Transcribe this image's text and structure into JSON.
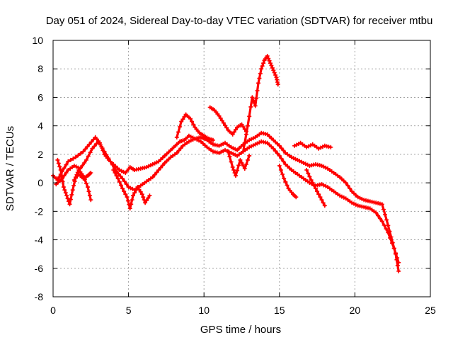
{
  "chart_data": {
    "type": "scatter",
    "title": "Day 051 of 2024, Sidereal Day-to-day VTEC variation (SDTVAR) for receiver mtbu",
    "xlabel": "GPS time / hours",
    "ylabel": "SDTVAR / TECUs",
    "xlim": [
      0,
      25
    ],
    "ylim": [
      -8,
      10
    ],
    "xticks": [
      "0",
      "5",
      "10",
      "15",
      "20",
      "25"
    ],
    "yticks": [
      "-8",
      "-6",
      "-4",
      "-2",
      "0",
      "2",
      "4",
      "6",
      "8",
      "10"
    ],
    "grid": true,
    "legend": "none",
    "series": [
      {
        "name": "track-main",
        "color": "#ff0000",
        "x": [
          0.0,
          0.3,
          0.6,
          1.0,
          1.5,
          2.0,
          2.4,
          2.8,
          3.1,
          3.4,
          3.7,
          4.0,
          4.4,
          4.8,
          5.1,
          5.4,
          5.8,
          6.2,
          6.6,
          7.0,
          7.4,
          7.8,
          8.1,
          8.4,
          8.7,
          9.0,
          9.4,
          9.8,
          10.2,
          10.6,
          11.0,
          11.4,
          11.8,
          12.2,
          12.6,
          13.0,
          13.4,
          13.8,
          14.2,
          14.6,
          15.0,
          15.4,
          15.8,
          16.2,
          16.6,
          17.0,
          17.4,
          17.8,
          18.2,
          18.6,
          19.0,
          19.4,
          19.8,
          20.2,
          20.6,
          21.0,
          21.4,
          21.8,
          22.1,
          22.4,
          22.7,
          22.9
        ],
        "y": [
          0.5,
          0.2,
          0.8,
          1.5,
          1.8,
          2.2,
          2.7,
          3.2,
          2.8,
          2.0,
          1.6,
          1.3,
          0.9,
          0.7,
          1.1,
          0.9,
          1.0,
          1.1,
          1.3,
          1.5,
          1.9,
          2.3,
          2.6,
          2.9,
          3.0,
          3.3,
          3.1,
          3.2,
          3.0,
          2.7,
          2.6,
          2.8,
          2.5,
          2.3,
          2.7,
          3.0,
          3.2,
          3.5,
          3.4,
          3.0,
          2.6,
          2.1,
          1.8,
          1.6,
          1.4,
          1.2,
          1.3,
          1.2,
          1.0,
          0.7,
          0.4,
          0.0,
          -0.6,
          -1.0,
          -1.2,
          -1.3,
          -1.4,
          -1.5,
          -2.6,
          -3.8,
          -5.0,
          -6.2
        ]
      },
      {
        "name": "track-low",
        "color": "#ff0000",
        "x": [
          0.2,
          0.6,
          1.0,
          1.4,
          1.8,
          2.2,
          2.6,
          3.0,
          3.4,
          3.8,
          4.2,
          4.6,
          5.0,
          5.4,
          5.8,
          6.2,
          6.6,
          7.0,
          7.4,
          7.8,
          8.2,
          8.6,
          9.0,
          9.4,
          9.8,
          10.2,
          10.6,
          11.0,
          11.4,
          11.8,
          12.2,
          12.6,
          13.0,
          13.4,
          13.8,
          14.2,
          14.6,
          15.0,
          15.4,
          15.8,
          16.2,
          16.6,
          17.0,
          17.4,
          17.8,
          18.2,
          18.6,
          19.0,
          19.4,
          19.8,
          20.2,
          20.6,
          21.0,
          21.4,
          21.8,
          22.2,
          22.6,
          22.9
        ],
        "y": [
          -0.1,
          0.3,
          0.9,
          1.2,
          1.0,
          1.6,
          2.4,
          2.9,
          2.2,
          1.5,
          0.8,
          0.3,
          -0.3,
          -0.5,
          -0.2,
          0.1,
          0.4,
          0.9,
          1.4,
          1.8,
          2.1,
          2.6,
          2.9,
          3.1,
          2.9,
          2.5,
          2.2,
          2.1,
          2.3,
          2.1,
          1.9,
          2.2,
          2.5,
          2.7,
          2.9,
          2.8,
          2.4,
          1.9,
          1.3,
          0.9,
          0.6,
          0.3,
          0.0,
          -0.2,
          -0.1,
          -0.3,
          -0.6,
          -0.9,
          -1.1,
          -1.4,
          -1.6,
          -1.7,
          -1.8,
          -2.1,
          -2.7,
          -3.5,
          -4.6,
          -5.6
        ]
      },
      {
        "name": "excursion-early-a",
        "color": "#ff0000",
        "x": [
          0.3,
          0.5,
          0.7,
          0.9,
          1.1,
          1.3,
          1.5,
          1.7,
          2.0,
          2.3,
          2.5
        ],
        "y": [
          1.6,
          0.9,
          -0.3,
          -0.9,
          -1.5,
          -0.5,
          0.4,
          0.9,
          0.5,
          -0.3,
          -1.2
        ]
      },
      {
        "name": "excursion-early-b",
        "color": "#ff0000",
        "x": [
          1.4,
          1.7,
          2.0,
          2.3,
          2.5
        ],
        "y": [
          0.2,
          0.6,
          0.3,
          0.5,
          0.7
        ]
      },
      {
        "name": "excursion-dip-5",
        "color": "#ff0000",
        "x": [
          4.0,
          4.3,
          4.6,
          4.9,
          5.1,
          5.3,
          5.6,
          5.9,
          6.1,
          6.4
        ],
        "y": [
          0.9,
          0.3,
          -0.4,
          -1.0,
          -1.8,
          -0.9,
          -0.3,
          -0.8,
          -1.4,
          -0.9
        ]
      },
      {
        "name": "excursion-peak-9",
        "color": "#ff0000",
        "x": [
          8.2,
          8.5,
          8.8,
          9.1,
          9.4,
          9.7,
          10.0,
          10.3,
          10.6
        ],
        "y": [
          3.2,
          4.3,
          4.8,
          4.5,
          3.9,
          3.5,
          3.3,
          3.1,
          3.0
        ]
      },
      {
        "name": "excursion-ridge-11",
        "color": "#ff0000",
        "x": [
          10.4,
          10.7,
          11.0,
          11.3,
          11.6,
          11.9,
          12.2,
          12.5,
          12.8
        ],
        "y": [
          5.3,
          5.1,
          4.7,
          4.2,
          3.7,
          3.4,
          3.9,
          4.1,
          3.6
        ]
      },
      {
        "name": "excursion-spike-14",
        "color": "#ff0000",
        "x": [
          12.6,
          12.9,
          13.2,
          13.4,
          13.6,
          13.8,
          14.0,
          14.2,
          14.4,
          14.6,
          14.8,
          14.9
        ],
        "y": [
          2.2,
          4.0,
          6.0,
          5.4,
          7.0,
          8.0,
          8.6,
          8.9,
          8.4,
          7.9,
          7.4,
          6.9
        ]
      },
      {
        "name": "excursion-dip-12",
        "color": "#ff0000",
        "x": [
          11.6,
          11.9,
          12.1,
          12.4,
          12.7,
          13.0
        ],
        "y": [
          2.2,
          1.1,
          0.5,
          1.6,
          1.0,
          1.9
        ]
      },
      {
        "name": "excursion-branch-16",
        "color": "#ff0000",
        "x": [
          15.0,
          15.3,
          15.6,
          15.9,
          16.1
        ],
        "y": [
          1.2,
          0.3,
          -0.4,
          -0.8,
          -1.0
        ]
      },
      {
        "name": "excursion-branch-17",
        "color": "#ff0000",
        "x": [
          16.0,
          16.4,
          16.8,
          17.2,
          17.6,
          18.0,
          18.4
        ],
        "y": [
          2.6,
          2.8,
          2.5,
          2.7,
          2.4,
          2.6,
          2.5
        ]
      },
      {
        "name": "excursion-branch-18",
        "color": "#ff0000",
        "x": [
          16.8,
          17.1,
          17.4,
          17.7,
          18.0
        ],
        "y": [
          0.9,
          0.2,
          -0.4,
          -1.0,
          -1.6
        ]
      }
    ]
  }
}
